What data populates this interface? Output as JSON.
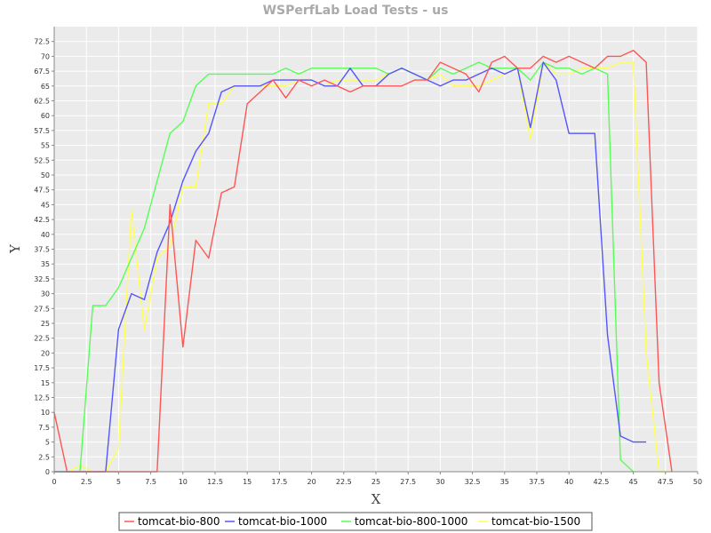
{
  "chart_data": {
    "type": "line",
    "title": "WSPerfLab Load Tests - us",
    "xlabel": "X",
    "ylabel": "Y",
    "xlim": [
      0,
      50
    ],
    "ylim": [
      0,
      75
    ],
    "x_ticks": [
      0,
      2.5,
      5,
      7.5,
      10,
      12.5,
      15,
      17.5,
      20,
      22.5,
      25,
      27.5,
      30,
      32.5,
      35,
      37.5,
      40,
      42.5,
      45,
      47.5,
      50
    ],
    "x_tick_labels": [
      "0",
      "2.5",
      "5",
      "7.5",
      "10",
      "12.5",
      "15",
      "17.5",
      "20",
      "22.5",
      "25",
      "27.5",
      "30",
      "32.5",
      "35",
      "37.5",
      "40",
      "42.5",
      "45",
      "47.5",
      "50"
    ],
    "y_ticks": [
      0,
      2.5,
      5,
      7.5,
      10,
      12.5,
      15,
      17.5,
      20,
      22.5,
      25,
      27.5,
      30,
      32.5,
      35,
      37.5,
      40,
      42.5,
      45,
      47.5,
      50,
      52.5,
      55,
      57.5,
      60,
      62.5,
      65,
      67.5,
      70,
      72.5
    ],
    "y_tick_labels": [
      "0",
      "2.5",
      "5",
      "7.5",
      "10",
      "12.5",
      "15",
      "17.5",
      "20",
      "22.5",
      "25",
      "27.5",
      "30",
      "32.5",
      "35",
      "37.5",
      "40",
      "42.5",
      "45",
      "47.5",
      "50",
      "52.5",
      "55",
      "57.5",
      "60",
      "62.5",
      "65",
      "67.5",
      "70",
      "72.5"
    ],
    "grid": true,
    "legend_position": "bottom",
    "series": [
      {
        "name": "tomcat-bio-1500",
        "color": "#ffff55",
        "x": [
          0,
          1,
          2,
          3,
          4,
          5,
          6,
          7,
          8,
          9,
          10,
          11,
          12,
          13,
          14,
          15,
          16,
          17,
          18,
          19,
          20,
          21,
          22,
          23,
          24,
          25,
          26,
          27,
          28,
          29,
          30,
          31,
          32,
          33,
          34,
          35,
          36,
          37,
          38,
          39,
          40,
          41,
          42,
          43,
          44,
          45,
          46,
          47,
          48
        ],
        "y": [
          0,
          0,
          1,
          0,
          0,
          4,
          44,
          24,
          36,
          38,
          48,
          48,
          62,
          62,
          65,
          65,
          65,
          65,
          65,
          66,
          66,
          65,
          66,
          66,
          66,
          66,
          67,
          68,
          67,
          66,
          67,
          65,
          65,
          65,
          66,
          67,
          68,
          56,
          69,
          67,
          67,
          68,
          68,
          68,
          69,
          69,
          20,
          0,
          0
        ]
      },
      {
        "name": "tomcat-bio-800-1000",
        "color": "#55ff55",
        "x": [
          0,
          1,
          2,
          3,
          4,
          5,
          6,
          7,
          8,
          9,
          10,
          11,
          12,
          13,
          14,
          15,
          16,
          17,
          18,
          19,
          20,
          21,
          22,
          23,
          24,
          25,
          26,
          27,
          28,
          29,
          30,
          31,
          32,
          33,
          34,
          35,
          36,
          37,
          38,
          39,
          40,
          41,
          42,
          43,
          44,
          45
        ],
        "y": [
          0,
          0,
          0,
          28,
          28,
          31,
          36,
          41,
          49,
          57,
          59,
          65,
          67,
          67,
          67,
          67,
          67,
          67,
          68,
          67,
          68,
          68,
          68,
          68,
          68,
          68,
          67,
          68,
          67,
          66,
          68,
          67,
          68,
          69,
          68,
          68,
          68,
          66,
          69,
          68,
          68,
          67,
          68,
          67,
          2,
          0
        ]
      },
      {
        "name": "tomcat-bio-1000",
        "color": "#5555ff",
        "x": [
          0,
          1,
          2,
          3,
          4,
          5,
          6,
          7,
          8,
          9,
          10,
          11,
          12,
          13,
          14,
          15,
          16,
          17,
          18,
          19,
          20,
          21,
          22,
          23,
          24,
          25,
          26,
          27,
          28,
          29,
          30,
          31,
          32,
          33,
          34,
          35,
          36,
          37,
          38,
          39,
          40,
          41,
          42,
          43,
          44,
          45,
          46
        ],
        "y": [
          0,
          0,
          0,
          0,
          0,
          24,
          30,
          29,
          37,
          42,
          49,
          54,
          57,
          64,
          65,
          65,
          65,
          66,
          66,
          66,
          66,
          65,
          65,
          68,
          65,
          65,
          67,
          68,
          67,
          66,
          65,
          66,
          66,
          67,
          68,
          67,
          68,
          58,
          69,
          66,
          57,
          57,
          57,
          23,
          6,
          5,
          5
        ]
      },
      {
        "name": "tomcat-bio-800",
        "color": "#ff5555",
        "x": [
          0,
          1,
          2,
          3,
          4,
          5,
          6,
          7,
          8,
          9,
          10,
          11,
          12,
          13,
          14,
          15,
          16,
          17,
          18,
          19,
          20,
          21,
          22,
          23,
          24,
          25,
          26,
          27,
          28,
          29,
          30,
          31,
          32,
          33,
          34,
          35,
          36,
          37,
          38,
          39,
          40,
          41,
          42,
          43,
          44,
          45,
          46,
          47,
          48
        ],
        "y": [
          10,
          0,
          0,
          0,
          0,
          0,
          0,
          0,
          0,
          45,
          21,
          39,
          36,
          47,
          48,
          62,
          64,
          66,
          63,
          66,
          65,
          66,
          65,
          64,
          65,
          65,
          65,
          65,
          66,
          66,
          69,
          68,
          67,
          64,
          69,
          70,
          68,
          68,
          70,
          69,
          70,
          69,
          68,
          70,
          70,
          71,
          69,
          15,
          0
        ]
      }
    ],
    "legend_items": [
      {
        "name": "tomcat-bio-800",
        "color": "#ff5555"
      },
      {
        "name": "tomcat-bio-1000",
        "color": "#5555ff"
      },
      {
        "name": "tomcat-bio-800-1000",
        "color": "#55ff55"
      },
      {
        "name": "tomcat-bio-1500",
        "color": "#ffff55"
      }
    ],
    "plot_background": "#ebebeb",
    "gridline_color": "#ffffff"
  }
}
